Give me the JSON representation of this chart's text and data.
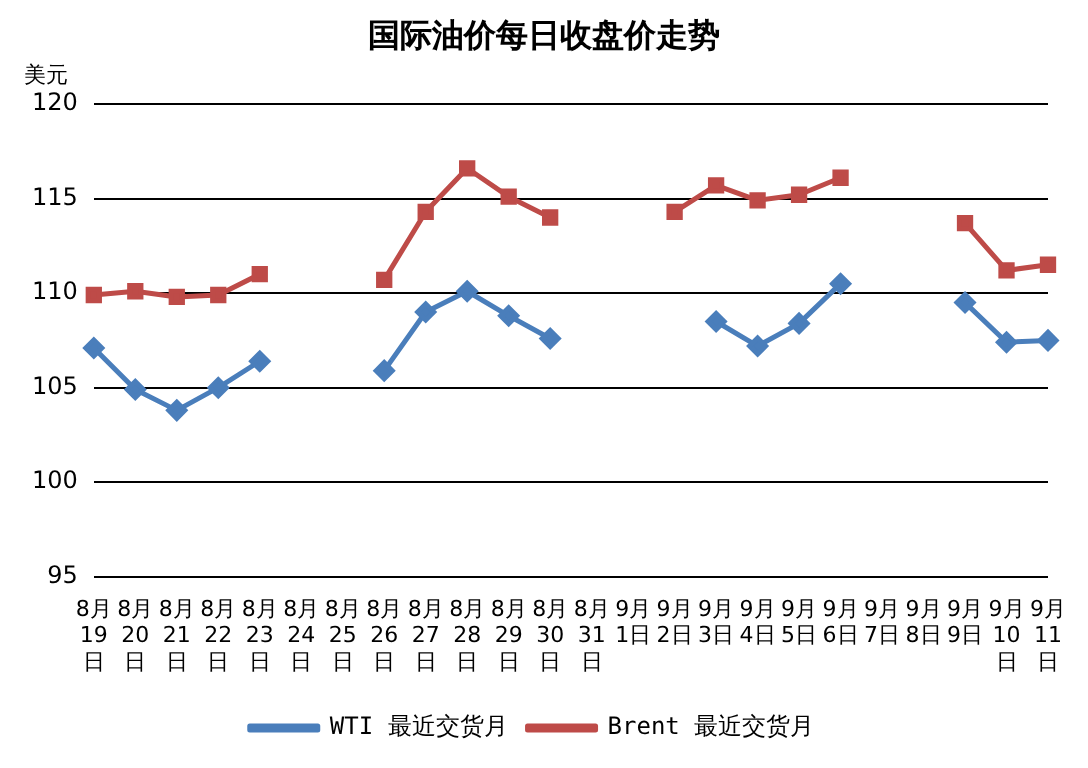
{
  "chart_data": {
    "type": "line",
    "title": "国际油价每日收盘价走势",
    "ylabel": "美元",
    "categories": [
      "8月19日",
      "8月20日",
      "8月21日",
      "8月22日",
      "8月23日",
      "8月24日",
      "8月25日",
      "8月26日",
      "8月27日",
      "8月28日",
      "8月29日",
      "8月30日",
      "8月31日",
      "9月1日",
      "9月2日",
      "9月3日",
      "9月4日",
      "9月5日",
      "9月6日",
      "9月7日",
      "9月8日",
      "9月9日",
      "9月10日",
      "9月11日"
    ],
    "series": [
      {
        "name": "WTI 最近交货月",
        "color": "#4a7ebb",
        "marker": "diamond",
        "values": [
          107.1,
          104.9,
          103.8,
          105.0,
          106.4,
          null,
          null,
          105.9,
          109.0,
          110.1,
          108.8,
          107.6,
          null,
          null,
          null,
          108.5,
          107.2,
          108.4,
          110.5,
          null,
          null,
          109.5,
          107.4,
          107.5
        ]
      },
      {
        "name": "Brent 最近交货月",
        "color": "#be4b48",
        "marker": "square",
        "values": [
          109.9,
          110.1,
          109.8,
          109.9,
          111.0,
          null,
          null,
          110.7,
          114.3,
          116.6,
          115.1,
          114.0,
          null,
          null,
          114.3,
          115.7,
          114.9,
          115.2,
          116.1,
          null,
          null,
          113.7,
          111.2,
          111.5
        ]
      }
    ],
    "ylim": [
      95,
      120
    ],
    "yticks": [
      95,
      100,
      105,
      110,
      115,
      120
    ],
    "grid": "y",
    "legend": "bottom",
    "line_style": "solid"
  }
}
